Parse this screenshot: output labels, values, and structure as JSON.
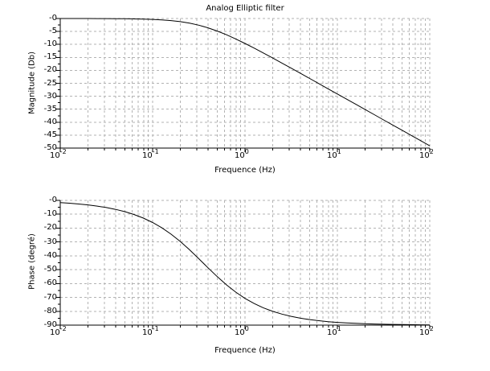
{
  "figure": {
    "background": "#ffffff",
    "axis_color": "#000000",
    "grid_color": "#b3b3b3",
    "grid_style": "dashed",
    "curve_color": "#000000"
  },
  "chart_data": [
    {
      "type": "line",
      "title": "Analog Elliptic filter",
      "xlabel": "Frequence (Hz)",
      "ylabel": "Magnitude (Db)",
      "xscale": "log10",
      "xlim_log10": [
        -2,
        2
      ],
      "ylim": [
        -50,
        0
      ],
      "ytick_major_step": 5,
      "ytick_minor_step": 2.5,
      "ytick_labels": [
        "-0",
        "-5",
        "-10",
        "-15",
        "-20",
        "-25",
        "-30",
        "-35",
        "-40",
        "-45",
        "-50"
      ],
      "xtick_base": "10",
      "xtick_exponents": [
        "-2",
        "-1",
        "0",
        "1",
        "2"
      ],
      "grid": true,
      "legend": "none",
      "series": [
        {
          "name": "magnitude",
          "x_log10_hz": [
            -2.0,
            -1.9,
            -1.8,
            -1.7,
            -1.6,
            -1.5,
            -1.4,
            -1.3,
            -1.2,
            -1.1,
            -1.0,
            -0.9,
            -0.8,
            -0.7,
            -0.6,
            -0.5,
            -0.4,
            -0.3,
            -0.2,
            -0.1,
            0.0,
            0.1,
            0.2,
            0.3,
            0.4,
            0.5,
            0.6,
            0.7,
            0.8,
            0.9,
            1.0,
            1.1,
            1.2,
            1.3,
            1.4,
            1.5,
            1.6,
            1.7,
            1.8,
            1.9,
            2.0
          ],
          "y_db": [
            0.0,
            -0.01,
            -0.01,
            -0.01,
            -0.02,
            -0.04,
            -0.06,
            -0.09,
            -0.14,
            -0.22,
            -0.34,
            -0.53,
            -0.81,
            -1.22,
            -1.81,
            -2.59,
            -3.61,
            -4.84,
            -6.28,
            -7.89,
            -9.62,
            -11.44,
            -13.33,
            -15.25,
            -17.2,
            -19.17,
            -21.15,
            -23.14,
            -25.13,
            -27.13,
            -29.12,
            -31.12,
            -33.12,
            -35.12,
            -37.12,
            -39.12,
            -41.12,
            -43.12,
            -45.12,
            -47.12,
            -49.12
          ]
        }
      ]
    },
    {
      "type": "line",
      "title": "",
      "xlabel": "Frequence (Hz)",
      "ylabel": "Phase (degré)",
      "xscale": "log10",
      "xlim_log10": [
        -2,
        2
      ],
      "ylim": [
        -90,
        0
      ],
      "ytick_major_step": 10,
      "ytick_minor_step": 5,
      "ytick_labels": [
        "-0",
        "-10",
        "-20",
        "-30",
        "-40",
        "-50",
        "-60",
        "-70",
        "-80",
        "-90"
      ],
      "xtick_base": "10",
      "xtick_exponents": [
        "-2",
        "-1",
        "0",
        "1",
        "2"
      ],
      "grid": true,
      "legend": "none",
      "series": [
        {
          "name": "phase",
          "x_log10_hz": [
            -2.0,
            -1.9,
            -1.8,
            -1.7,
            -1.6,
            -1.5,
            -1.4,
            -1.3,
            -1.2,
            -1.1,
            -1.0,
            -0.9,
            -0.8,
            -0.7,
            -0.6,
            -0.5,
            -0.4,
            -0.3,
            -0.2,
            -0.1,
            0.0,
            0.1,
            0.2,
            0.3,
            0.4,
            0.5,
            0.6,
            0.7,
            0.8,
            0.9,
            1.0,
            1.1,
            1.2,
            1.3,
            1.4,
            1.5,
            1.6,
            1.7,
            1.8,
            1.9,
            2.0
          ],
          "y_deg": [
            -1.64,
            -2.06,
            -2.59,
            -3.26,
            -4.11,
            -5.16,
            -6.49,
            -8.15,
            -10.22,
            -12.79,
            -15.95,
            -19.79,
            -24.36,
            -29.68,
            -35.66,
            -42.1,
            -48.68,
            -55.06,
            -60.98,
            -66.22,
            -70.71,
            -74.46,
            -77.55,
            -80.05,
            -82.07,
            -83.68,
            -84.98,
            -86.0,
            -86.82,
            -87.48,
            -88.0,
            -88.41,
            -88.73,
            -89.0,
            -89.2,
            -89.37,
            -89.5,
            -89.6,
            -89.68,
            -89.75,
            -89.8
          ]
        }
      ]
    }
  ]
}
